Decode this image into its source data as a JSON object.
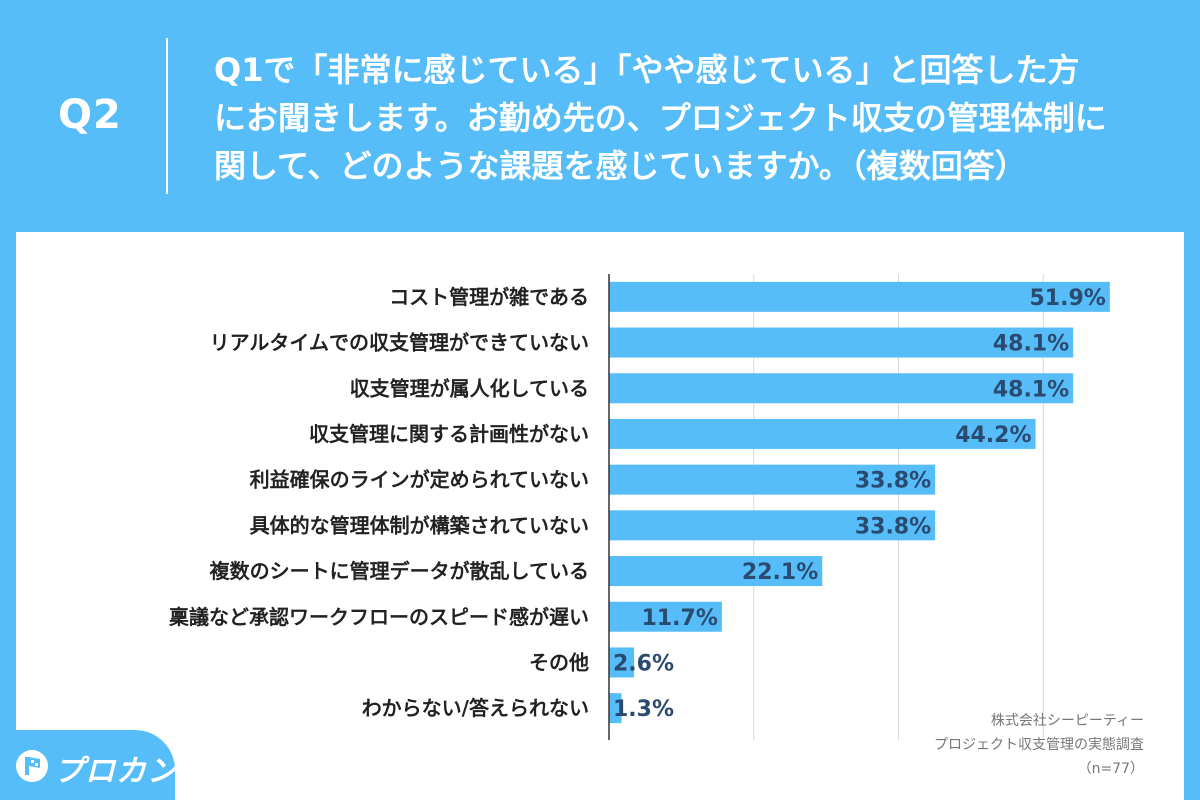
{
  "header": {
    "q_label": "Q2",
    "question_lines": [
      "Q1で「非常に感じている」「やや感じている」と回答した方",
      "にお聞きします。お勤め先の、プロジェクト収支の管理体制に",
      "関して、どのような課題を感じていますか。（複数回答）"
    ]
  },
  "chart_data": {
    "type": "bar",
    "orientation": "horizontal",
    "categories": [
      "コスト管理が雑である",
      "リアルタイムでの収支管理ができていない",
      "収支管理が属人化している",
      "収支管理に関する計画性がない",
      "利益確保のラインが定められていない",
      "具体的な管理体制が構築されていない",
      "複数のシートに管理データが散乱している",
      "稟議など承認ワークフローのスピード感が遅い",
      "その他",
      "わからない/答えられない"
    ],
    "values": [
      51.9,
      48.1,
      48.1,
      44.2,
      33.8,
      33.8,
      22.1,
      11.7,
      2.6,
      1.3
    ],
    "value_labels": [
      "51.9%",
      "48.1%",
      "48.1%",
      "44.2%",
      "33.8%",
      "33.8%",
      "22.1%",
      "11.7%",
      "2.6%",
      "1.3%"
    ],
    "xlim": [
      0,
      60
    ],
    "grid": true,
    "bar_color": "#56bdf8"
  },
  "source": {
    "company": "株式会社シーピーティー",
    "survey": "プロジェクト収支管理の実態調査",
    "sample": "（n=77）"
  },
  "logo": {
    "text": "プロカン"
  },
  "colors": {
    "background": "#56bdf8",
    "panel": "#ffffff",
    "bar": "#56bdf8",
    "value_text": "#2a4a70"
  }
}
